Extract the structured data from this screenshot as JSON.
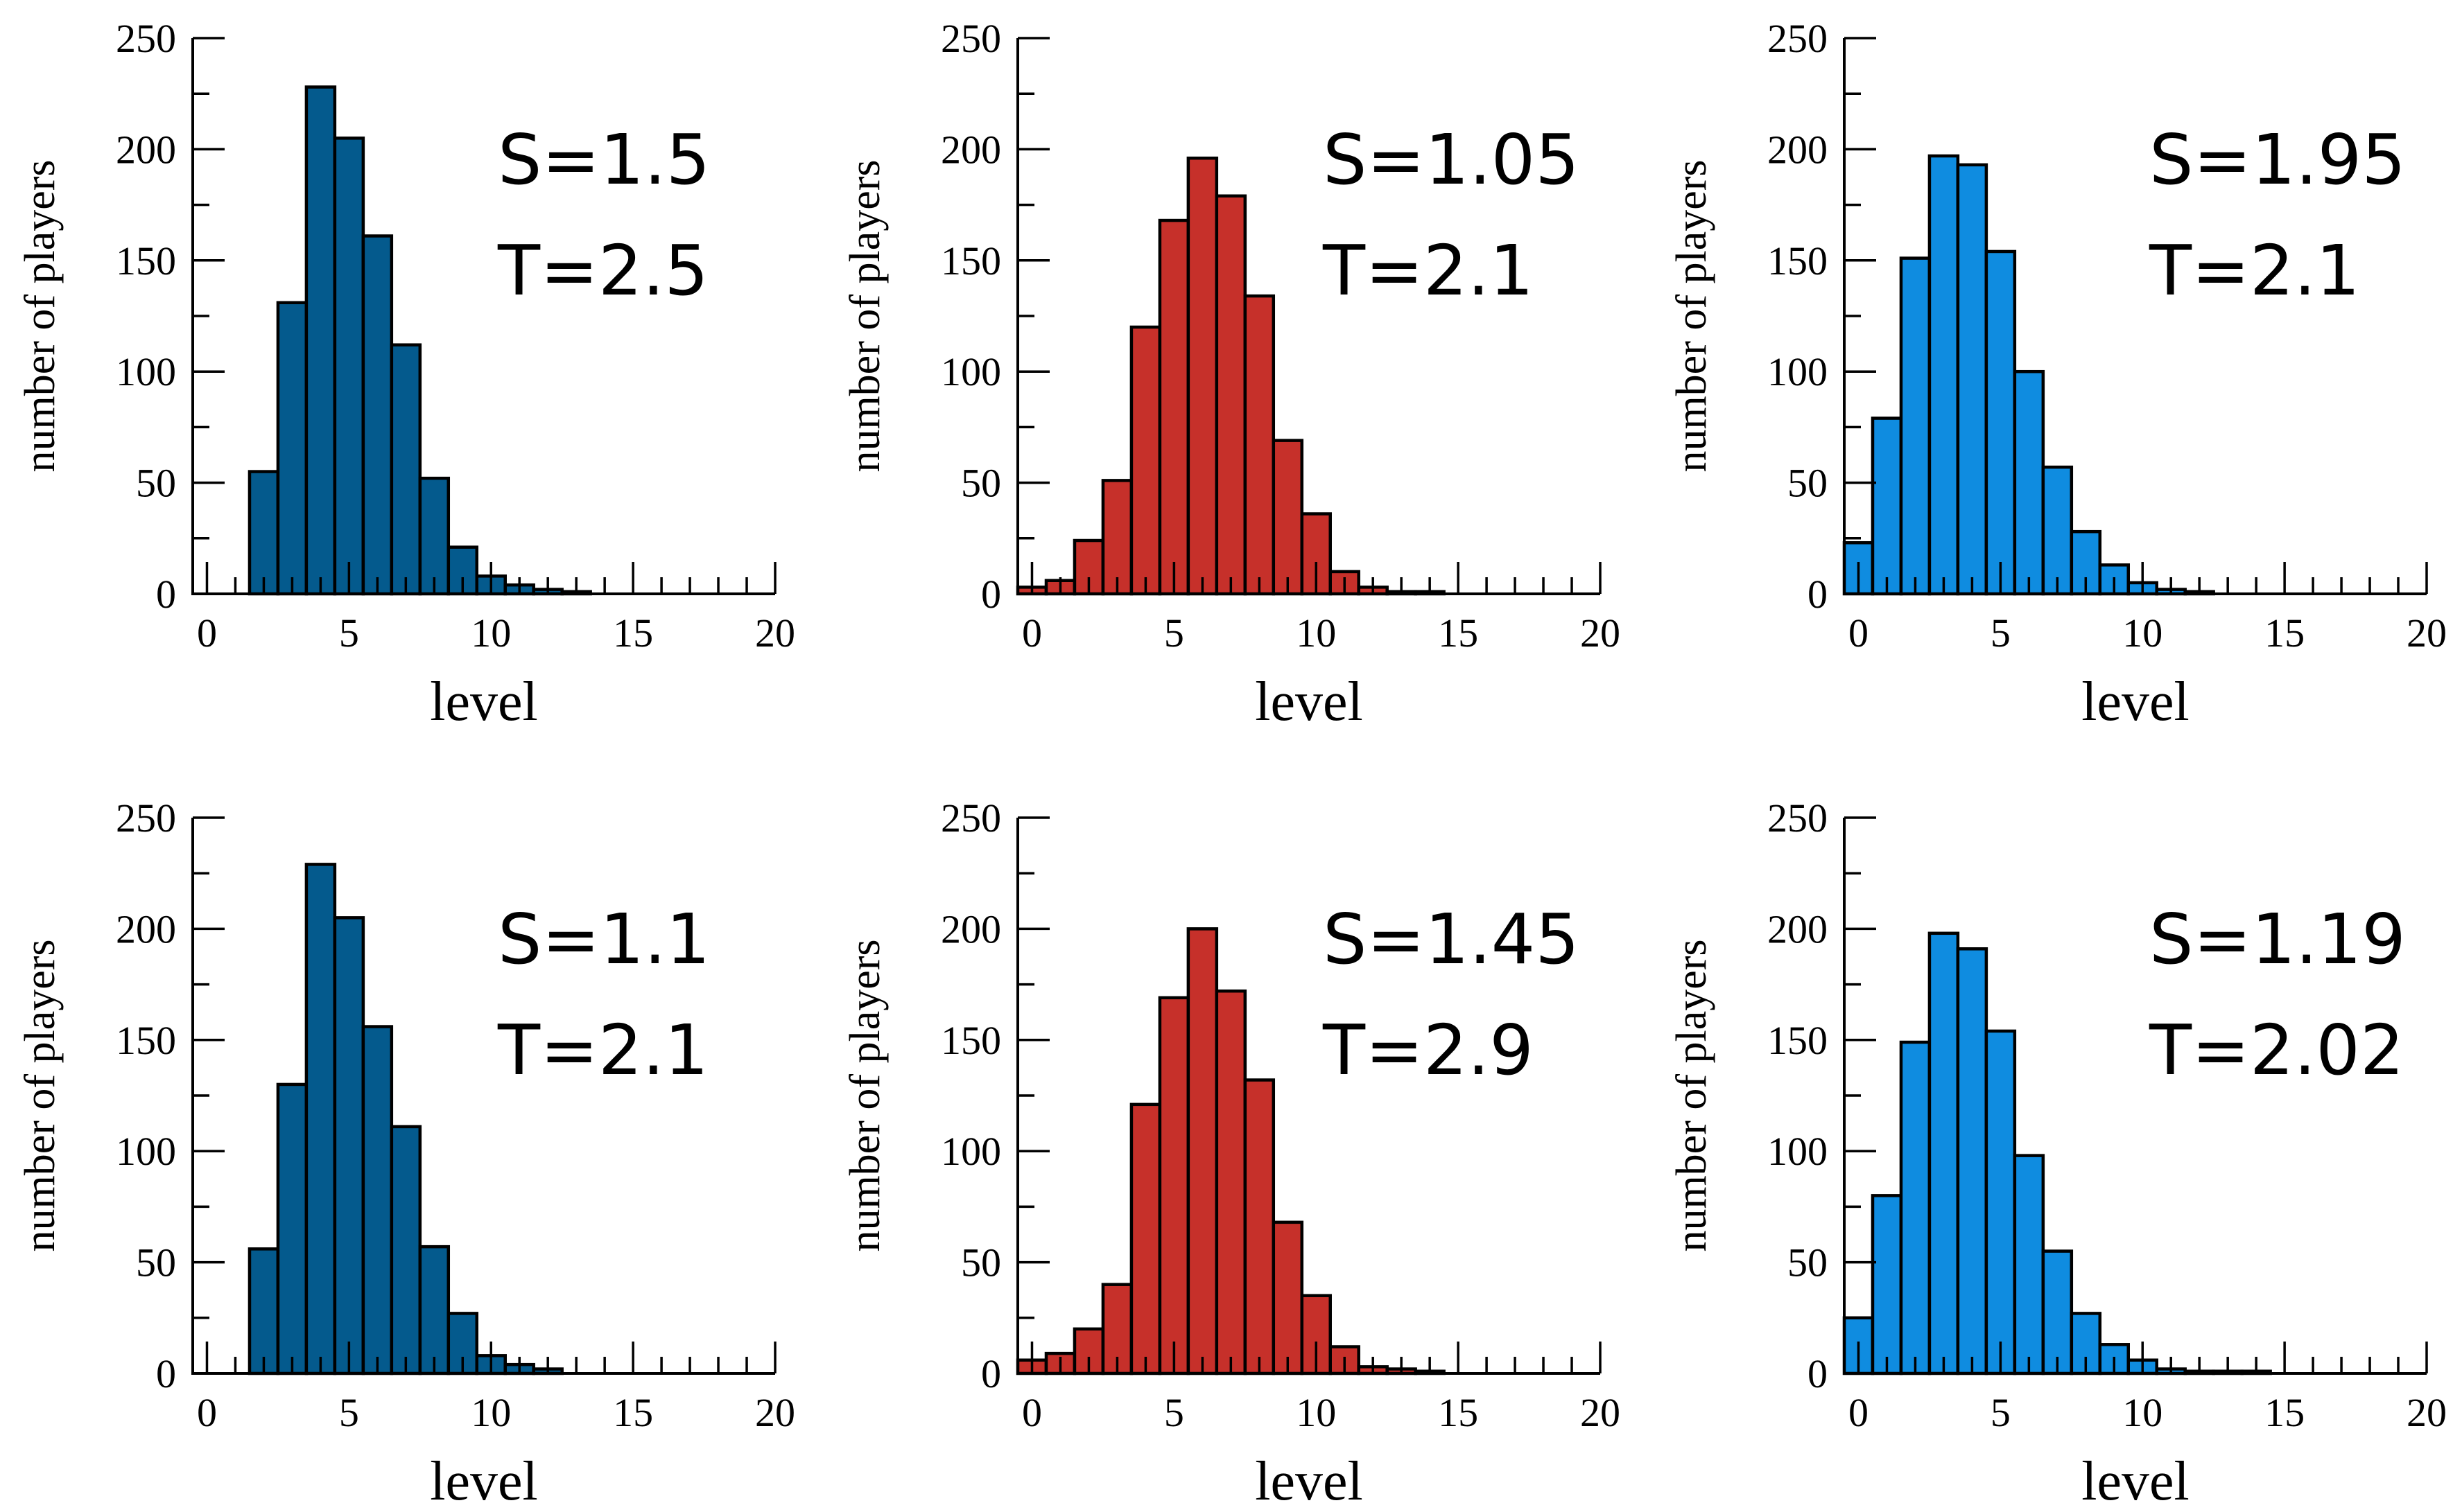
{
  "chart_data": [
    {
      "type": "bar",
      "bar_color": "#045a8d",
      "xlabel": "level",
      "ylabel": "number of players",
      "xlim": [
        -0.5,
        20
      ],
      "ylim": [
        0,
        250
      ],
      "xticks": [
        0,
        5,
        10,
        15,
        20
      ],
      "yticks": [
        0,
        50,
        100,
        150,
        200,
        250
      ],
      "annotations": [
        "S=1.5",
        "T=2.5"
      ],
      "x": [
        2,
        3,
        4,
        5,
        6,
        7,
        8,
        9,
        10,
        11,
        12,
        13
      ],
      "values": [
        55,
        131,
        228,
        205,
        161,
        112,
        52,
        21,
        8,
        4,
        2,
        1
      ]
    },
    {
      "type": "bar",
      "bar_color": "#c6302a",
      "xlabel": "level",
      "ylabel": "number of players",
      "xlim": [
        -0.5,
        20
      ],
      "ylim": [
        0,
        250
      ],
      "xticks": [
        0,
        5,
        10,
        15,
        20
      ],
      "yticks": [
        0,
        50,
        100,
        150,
        200,
        250
      ],
      "annotations": [
        "S=1.05",
        "T=2.1"
      ],
      "x": [
        0,
        1,
        2,
        3,
        4,
        5,
        6,
        7,
        8,
        9,
        10,
        11,
        12,
        13,
        14
      ],
      "values": [
        3,
        6,
        24,
        51,
        120,
        168,
        196,
        179,
        134,
        69,
        36,
        10,
        3,
        1,
        1
      ]
    },
    {
      "type": "bar",
      "bar_color": "#0f8ce0",
      "xlabel": "level",
      "ylabel": "number of players",
      "xlim": [
        -0.5,
        20
      ],
      "ylim": [
        0,
        250
      ],
      "xticks": [
        0,
        5,
        10,
        15,
        20
      ],
      "yticks": [
        0,
        50,
        100,
        150,
        200,
        250
      ],
      "annotations": [
        "S=1.95",
        "T=2.1"
      ],
      "x": [
        0,
        1,
        2,
        3,
        4,
        5,
        6,
        7,
        8,
        9,
        10,
        11,
        12
      ],
      "values": [
        23,
        79,
        151,
        197,
        193,
        154,
        100,
        57,
        28,
        13,
        5,
        2,
        1
      ]
    },
    {
      "type": "bar",
      "bar_color": "#045a8d",
      "xlabel": "level",
      "ylabel": "number of players",
      "xlim": [
        -0.5,
        20
      ],
      "ylim": [
        0,
        250
      ],
      "xticks": [
        0,
        5,
        10,
        15,
        20
      ],
      "yticks": [
        0,
        50,
        100,
        150,
        200,
        250
      ],
      "annotations": [
        "S=1.1",
        "T=2.1"
      ],
      "x": [
        2,
        3,
        4,
        5,
        6,
        7,
        8,
        9,
        10,
        11,
        12
      ],
      "values": [
        56,
        130,
        229,
        205,
        156,
        111,
        57,
        27,
        8,
        4,
        2
      ]
    },
    {
      "type": "bar",
      "bar_color": "#c6302a",
      "xlabel": "level",
      "ylabel": "number of players",
      "xlim": [
        -0.5,
        20
      ],
      "ylim": [
        0,
        250
      ],
      "xticks": [
        0,
        5,
        10,
        15,
        20
      ],
      "yticks": [
        0,
        50,
        100,
        150,
        200,
        250
      ],
      "annotations": [
        "S=1.45",
        "T=2.9"
      ],
      "x": [
        0,
        1,
        2,
        3,
        4,
        5,
        6,
        7,
        8,
        9,
        10,
        11,
        12,
        13,
        14
      ],
      "values": [
        6,
        9,
        20,
        40,
        121,
        169,
        200,
        172,
        132,
        68,
        35,
        12,
        3,
        2,
        1
      ]
    },
    {
      "type": "bar",
      "bar_color": "#0f8ce0",
      "xlabel": "level",
      "ylabel": "number of players",
      "xlim": [
        -0.5,
        20
      ],
      "ylim": [
        0,
        250
      ],
      "xticks": [
        0,
        5,
        10,
        15,
        20
      ],
      "yticks": [
        0,
        50,
        100,
        150,
        200,
        250
      ],
      "annotations": [
        "S=1.19",
        "T=2.02"
      ],
      "x": [
        0,
        1,
        2,
        3,
        4,
        5,
        6,
        7,
        8,
        9,
        10,
        11,
        12,
        13,
        14
      ],
      "values": [
        25,
        80,
        149,
        198,
        191,
        154,
        98,
        55,
        27,
        13,
        6,
        2,
        1,
        1,
        1
      ]
    }
  ]
}
